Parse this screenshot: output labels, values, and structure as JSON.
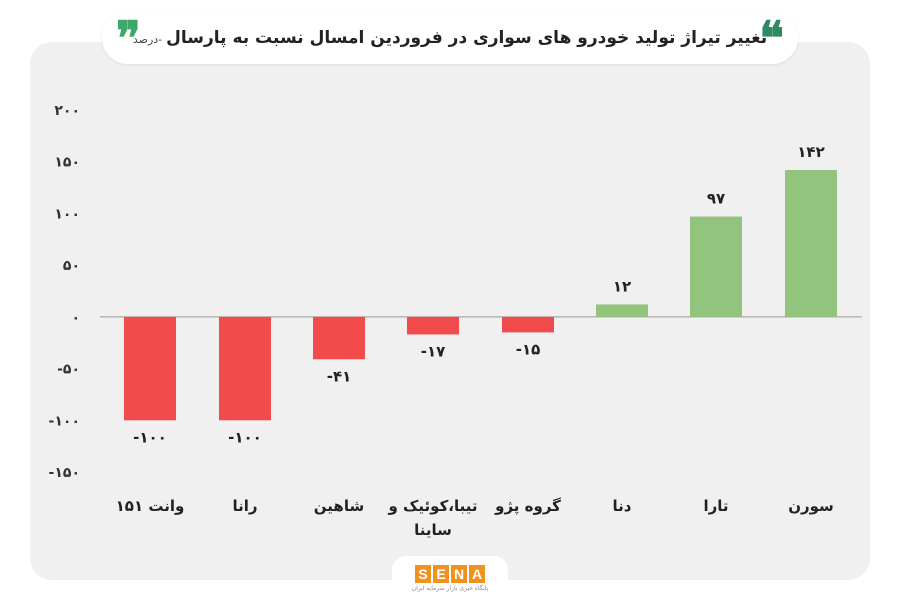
{
  "header": {
    "title": "تغییر تیراژ تولید خودرو های سواری در فروردین امسال نسبت به پارسال",
    "subtitle": "-درصد",
    "quote_open": "❞",
    "quote_close": "❝"
  },
  "colors": {
    "positive": "#93c47d",
    "negative": "#f24b4b",
    "quote_left": "#3ea86b",
    "quote_right": "#2e8a62",
    "card": "#f0f0f0"
  },
  "chart_data": {
    "type": "bar",
    "categories": [
      "وانت ۱۵۱",
      "رانا",
      "شاهین",
      "تیبا،کوئیک و ساینا",
      "گروه پژو",
      "دنا",
      "تارا",
      "سورن"
    ],
    "values": [
      -100,
      -100,
      -41,
      -17,
      -15,
      12,
      97,
      142
    ],
    "value_labels": [
      "-۱۰۰",
      "-۱۰۰",
      "-۴۱",
      "-۱۷",
      "-۱۵",
      "۱۲",
      "۹۷",
      "۱۴۲"
    ],
    "ylim": [
      -150,
      200
    ],
    "yticks": [
      200,
      150,
      100,
      50,
      0,
      -50,
      -100,
      -150
    ],
    "ytick_labels": [
      "۲۰۰",
      "۱۵۰",
      "۱۰۰",
      "۵۰",
      "۰",
      "-۵۰",
      "-۱۰۰",
      "-۱۵۰"
    ],
    "grid": false,
    "legend": "none"
  },
  "logo": {
    "letters": [
      "S",
      "E",
      "N",
      "A"
    ],
    "tagline": "پایگاه خبری بازار سرمایه ایران"
  }
}
